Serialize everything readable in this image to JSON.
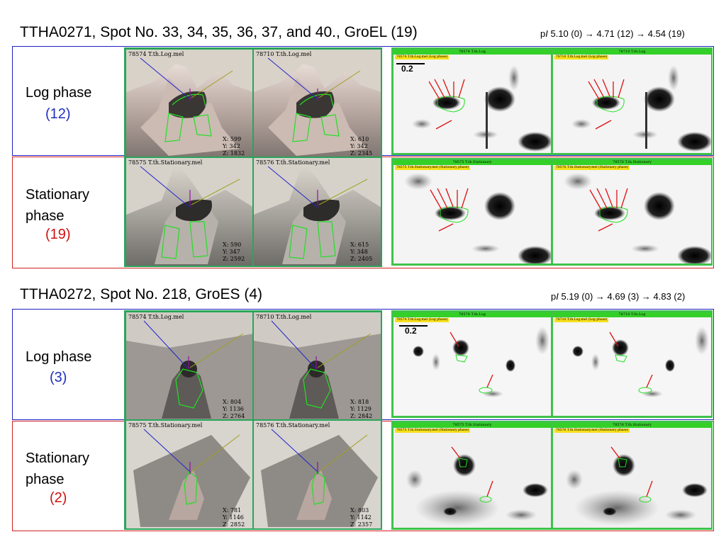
{
  "section1": {
    "title": "TTHA0271, Spot No. 33, 34, 35, 36, 37, and 40.,  GroEL (19)",
    "pi": {
      "prefix": "p",
      "italic": "I",
      "text": " 5.10 (0) → 4.71 (12) → 4.54 (19)"
    },
    "log": {
      "label": "Log phase",
      "count": "(12)",
      "panels": [
        {
          "title": "78574 T.th.Log.mel",
          "x": "X: 599",
          "y": "Y: 342",
          "z": "Z: 1832"
        },
        {
          "title": "78710 T.th.Log.mel",
          "x": "X: 610",
          "y": "Y: 342",
          "z": "Z: 2345"
        }
      ],
      "gels": [
        {
          "bar": "78574 T.th.Log",
          "tag": "78574 T.th.Log.mel (Log phase)"
        },
        {
          "bar": "78710 T.th.Log",
          "tag": "78710 T.th.Log.mel (Log phase)"
        }
      ],
      "scale": "0.2"
    },
    "stationary": {
      "label_line1": "Stationary",
      "label_line2": "phase",
      "count": "(19)",
      "panels": [
        {
          "title": "78575 T.th.Stationary.mel",
          "x": "X: 590",
          "y": "Y: 347",
          "z": "Z: 2592"
        },
        {
          "title": "78576 T.th.Stationary.mel",
          "x": "X: 615",
          "y": "Y: 348",
          "z": "Z: 2405"
        }
      ],
      "gels": [
        {
          "bar": "78575 T.th.Stationary",
          "tag": "78575 T.th.Stationary.mel (Stationary phase)"
        },
        {
          "bar": "78576 T.th.Stationary",
          "tag": "78576 T.th.Stationary.mel (Stationary phase)"
        }
      ]
    }
  },
  "section2": {
    "title": "TTHA0272, Spot No. 218, GroES (4)",
    "pi": {
      "prefix": "p",
      "italic": "I",
      "text": " 5.19 (0) → 4.69 (3) → 4.83 (2)"
    },
    "log": {
      "label": "Log phase",
      "count": "(3)",
      "panels": [
        {
          "title": "78574 T.th.Log.mel",
          "x": "X: 804",
          "y": "Y: 1136",
          "z": "Z: 2764"
        },
        {
          "title": "78710 T.th.Log.mel",
          "x": "X: 818",
          "y": "Y: 1129",
          "z": "Z: 2842"
        }
      ],
      "gels": [
        {
          "bar": "78574 T.th.Log",
          "tag": "78574 T.th.Log.mel (Log phase)"
        },
        {
          "bar": "78710 T.th.Log",
          "tag": "78710 T.th.Log.mel (Log phase)"
        }
      ],
      "scale": "0.2"
    },
    "stationary": {
      "label_line1": "Stationary",
      "label_line2": "phase",
      "count": "(2)",
      "panels": [
        {
          "title": "78575 T.th.Stationary.mel",
          "x": "X: 781",
          "y": "Y: 1146",
          "z": "Z: 2852"
        },
        {
          "title": "78576 T.th.Stationary.mel",
          "x": "X: 803",
          "y": "Y: 1142",
          "z": "Z: 2357"
        }
      ],
      "gels": [
        {
          "bar": "78575 T.th.Stationary",
          "tag": "78575 T.th.Stationary.mel (Stationary phase)"
        },
        {
          "bar": "78576 T.th.Stationary",
          "tag": "78576 T.th.Stationary.mel (Stationary phase)"
        }
      ]
    }
  },
  "colors": {
    "log_border": "#1f1fc0",
    "stationary_border": "#d02020",
    "count_log": "#1f2fbf",
    "count_stationary": "#d01010",
    "arrow": "#e01010",
    "outline": "#22e022"
  }
}
